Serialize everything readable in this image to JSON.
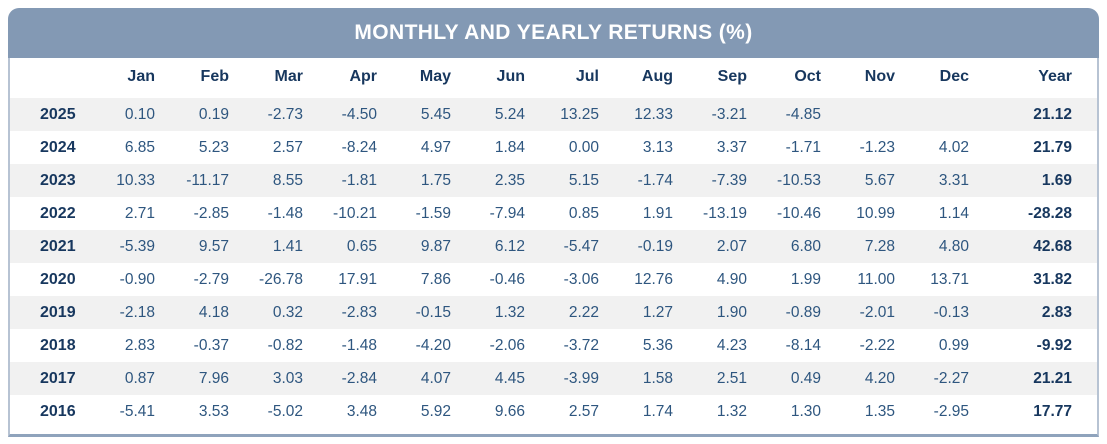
{
  "title": "MONTHLY AND YEARLY RETURNS (%)",
  "colors": {
    "header_bg": "#8399B4",
    "header_text": "#FFFFFF",
    "label_text": "#17375E",
    "value_text": "#2E567F",
    "stripe_bg": "#F1F1F1",
    "border": "#B7C3D3",
    "border_dark": "#8FA3BC"
  },
  "table": {
    "columns": [
      "",
      "Jan",
      "Feb",
      "Mar",
      "Apr",
      "May",
      "Jun",
      "Jul",
      "Aug",
      "Sep",
      "Oct",
      "Nov",
      "Dec",
      "Year"
    ],
    "rows": [
      {
        "year": "2025",
        "values": [
          "0.10",
          "0.19",
          "-2.73",
          "-4.50",
          "5.45",
          "5.24",
          "13.25",
          "12.33",
          "-3.21",
          "-4.85",
          "",
          ""
        ],
        "total": "21.12"
      },
      {
        "year": "2024",
        "values": [
          "6.85",
          "5.23",
          "2.57",
          "-8.24",
          "4.97",
          "1.84",
          "0.00",
          "3.13",
          "3.37",
          "-1.71",
          "-1.23",
          "4.02"
        ],
        "total": "21.79"
      },
      {
        "year": "2023",
        "values": [
          "10.33",
          "-11.17",
          "8.55",
          "-1.81",
          "1.75",
          "2.35",
          "5.15",
          "-1.74",
          "-7.39",
          "-10.53",
          "5.67",
          "3.31"
        ],
        "total": "1.69"
      },
      {
        "year": "2022",
        "values": [
          "2.71",
          "-2.85",
          "-1.48",
          "-10.21",
          "-1.59",
          "-7.94",
          "0.85",
          "1.91",
          "-13.19",
          "-10.46",
          "10.99",
          "1.14"
        ],
        "total": "-28.28"
      },
      {
        "year": "2021",
        "values": [
          "-5.39",
          "9.57",
          "1.41",
          "0.65",
          "9.87",
          "6.12",
          "-5.47",
          "-0.19",
          "2.07",
          "6.80",
          "7.28",
          "4.80"
        ],
        "total": "42.68"
      },
      {
        "year": "2020",
        "values": [
          "-0.90",
          "-2.79",
          "-26.78",
          "17.91",
          "7.86",
          "-0.46",
          "-3.06",
          "12.76",
          "4.90",
          "1.99",
          "11.00",
          "13.71"
        ],
        "total": "31.82"
      },
      {
        "year": "2019",
        "values": [
          "-2.18",
          "4.18",
          "0.32",
          "-2.83",
          "-0.15",
          "1.32",
          "2.22",
          "1.27",
          "1.90",
          "-0.89",
          "-2.01",
          "-0.13"
        ],
        "total": "2.83"
      },
      {
        "year": "2018",
        "values": [
          "2.83",
          "-0.37",
          "-0.82",
          "-1.48",
          "-4.20",
          "-2.06",
          "-3.72",
          "5.36",
          "4.23",
          "-8.14",
          "-2.22",
          "0.99"
        ],
        "total": "-9.92"
      },
      {
        "year": "2017",
        "values": [
          "0.87",
          "7.96",
          "3.03",
          "-2.84",
          "4.07",
          "4.45",
          "-3.99",
          "1.58",
          "2.51",
          "0.49",
          "4.20",
          "-2.27"
        ],
        "total": "21.21"
      },
      {
        "year": "2016",
        "values": [
          "-5.41",
          "3.53",
          "-5.02",
          "3.48",
          "5.92",
          "9.66",
          "2.57",
          "1.74",
          "1.32",
          "1.30",
          "1.35",
          "-2.95"
        ],
        "total": "17.77"
      }
    ]
  },
  "chart_data": {
    "type": "table",
    "title": "MONTHLY AND YEARLY RETURNS (%)",
    "columns": [
      "Jan",
      "Feb",
      "Mar",
      "Apr",
      "May",
      "Jun",
      "Jul",
      "Aug",
      "Sep",
      "Oct",
      "Nov",
      "Dec",
      "Year"
    ],
    "rows": [
      {
        "year": 2025,
        "monthly": [
          0.1,
          0.19,
          -2.73,
          -4.5,
          5.45,
          5.24,
          13.25,
          12.33,
          -3.21,
          -4.85,
          null,
          null
        ],
        "year_total": 21.12
      },
      {
        "year": 2024,
        "monthly": [
          6.85,
          5.23,
          2.57,
          -8.24,
          4.97,
          1.84,
          0.0,
          3.13,
          3.37,
          -1.71,
          -1.23,
          4.02
        ],
        "year_total": 21.79
      },
      {
        "year": 2023,
        "monthly": [
          10.33,
          -11.17,
          8.55,
          -1.81,
          1.75,
          2.35,
          5.15,
          -1.74,
          -7.39,
          -10.53,
          5.67,
          3.31
        ],
        "year_total": 1.69
      },
      {
        "year": 2022,
        "monthly": [
          2.71,
          -2.85,
          -1.48,
          -10.21,
          -1.59,
          -7.94,
          0.85,
          1.91,
          -13.19,
          -10.46,
          10.99,
          1.14
        ],
        "year_total": -28.28
      },
      {
        "year": 2021,
        "monthly": [
          -5.39,
          9.57,
          1.41,
          0.65,
          9.87,
          6.12,
          -5.47,
          -0.19,
          2.07,
          6.8,
          7.28,
          4.8
        ],
        "year_total": 42.68
      },
      {
        "year": 2020,
        "monthly": [
          -0.9,
          -2.79,
          -26.78,
          17.91,
          7.86,
          -0.46,
          -3.06,
          12.76,
          4.9,
          1.99,
          11.0,
          13.71
        ],
        "year_total": 31.82
      },
      {
        "year": 2019,
        "monthly": [
          -2.18,
          4.18,
          0.32,
          -2.83,
          -0.15,
          1.32,
          2.22,
          1.27,
          1.9,
          -0.89,
          -2.01,
          -0.13
        ],
        "year_total": 2.83
      },
      {
        "year": 2018,
        "monthly": [
          2.83,
          -0.37,
          -0.82,
          -1.48,
          -4.2,
          -2.06,
          -3.72,
          5.36,
          4.23,
          -8.14,
          -2.22,
          0.99
        ],
        "year_total": -9.92
      },
      {
        "year": 2017,
        "monthly": [
          0.87,
          7.96,
          3.03,
          -2.84,
          4.07,
          4.45,
          -3.99,
          1.58,
          2.51,
          0.49,
          4.2,
          -2.27
        ],
        "year_total": 21.21
      },
      {
        "year": 2016,
        "monthly": [
          -5.41,
          3.53,
          -5.02,
          3.48,
          5.92,
          9.66,
          2.57,
          1.74,
          1.32,
          1.3,
          1.35,
          -2.95
        ],
        "year_total": 17.77
      }
    ]
  }
}
